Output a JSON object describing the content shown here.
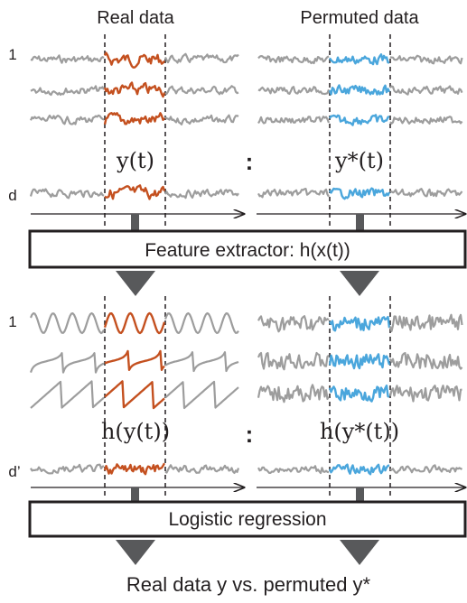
{
  "headers": {
    "left": "Real data",
    "right": "Permuted data"
  },
  "row_labels": {
    "first": "1",
    "last": "d",
    "first_features": "1",
    "last_features": "d’"
  },
  "math_labels": {
    "y_t": "y(t)",
    "y_star_t": "y*(t)",
    "h_y_t": "h(y(t))",
    "h_y_star_t": "h(y*(t))"
  },
  "separator": ":",
  "boxes": {
    "feature_extractor": "Feature extractor: h(x(t))",
    "logistic_regression": "Logistic regression"
  },
  "output_label": "Real data y vs. permuted y*",
  "colors": {
    "gray": "#9d9d9d",
    "real_highlight": "#c4501f",
    "permuted_highlight": "#4aa6dc",
    "box_border": "#231f20",
    "arrow": "#58595b"
  }
}
